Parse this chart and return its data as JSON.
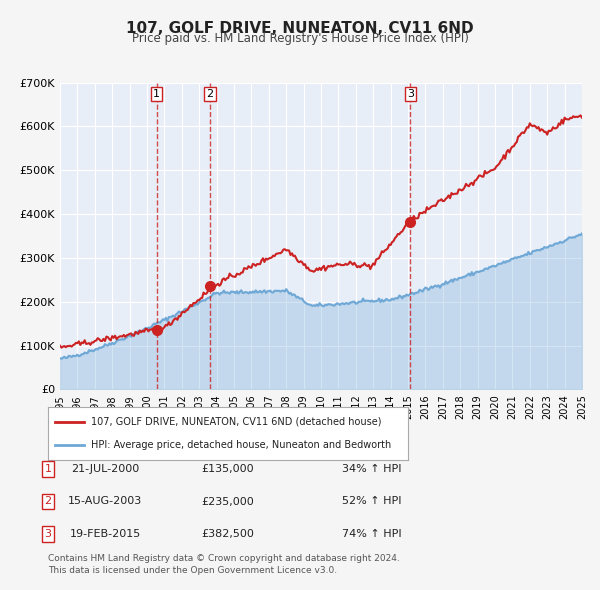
{
  "title": "107, GOLF DRIVE, NUNEATON, CV11 6ND",
  "subtitle": "Price paid vs. HM Land Registry's House Price Index (HPI)",
  "xlabel": "",
  "ylabel": "",
  "ylim": [
    0,
    700000
  ],
  "yticks": [
    0,
    100000,
    200000,
    300000,
    400000,
    500000,
    600000,
    700000
  ],
  "ytick_labels": [
    "£0",
    "£100K",
    "£200K",
    "£300K",
    "£400K",
    "£500K",
    "£600K",
    "£700K"
  ],
  "x_start_year": 1995,
  "x_end_year": 2025,
  "hpi_color": "#6fa8d6",
  "price_color": "#cc2222",
  "sale_marker_color": "#cc2222",
  "background_color": "#f0f4fa",
  "plot_bg_color": "#e8eef8",
  "grid_color": "#ffffff",
  "sale_events": [
    {
      "label": "1",
      "date": "2000-07-21",
      "price": 135000,
      "pct": "34%",
      "x": 2000.55
    },
    {
      "label": "2",
      "date": "2003-08-15",
      "price": 235000,
      "pct": "52%",
      "x": 2003.62
    },
    {
      "label": "3",
      "date": "2015-02-19",
      "price": 382500,
      "pct": "74%",
      "x": 2015.13
    }
  ],
  "legend_line1": "107, GOLF DRIVE, NUNEATON, CV11 6ND (detached house)",
  "legend_line2": "HPI: Average price, detached house, Nuneaton and Bedworth",
  "table_rows": [
    {
      "num": "1",
      "date": "21-JUL-2000",
      "price": "£135,000",
      "pct": "34% ↑ HPI"
    },
    {
      "num": "2",
      "date": "15-AUG-2003",
      "price": "£235,000",
      "pct": "52% ↑ HPI"
    },
    {
      "num": "3",
      "date": "19-FEB-2015",
      "price": "£382,500",
      "pct": "74% ↑ HPI"
    }
  ],
  "footnote": "Contains HM Land Registry data © Crown copyright and database right 2024.\nThis data is licensed under the Open Government Licence v3.0.",
  "dashed_line_color": "#cc2222"
}
